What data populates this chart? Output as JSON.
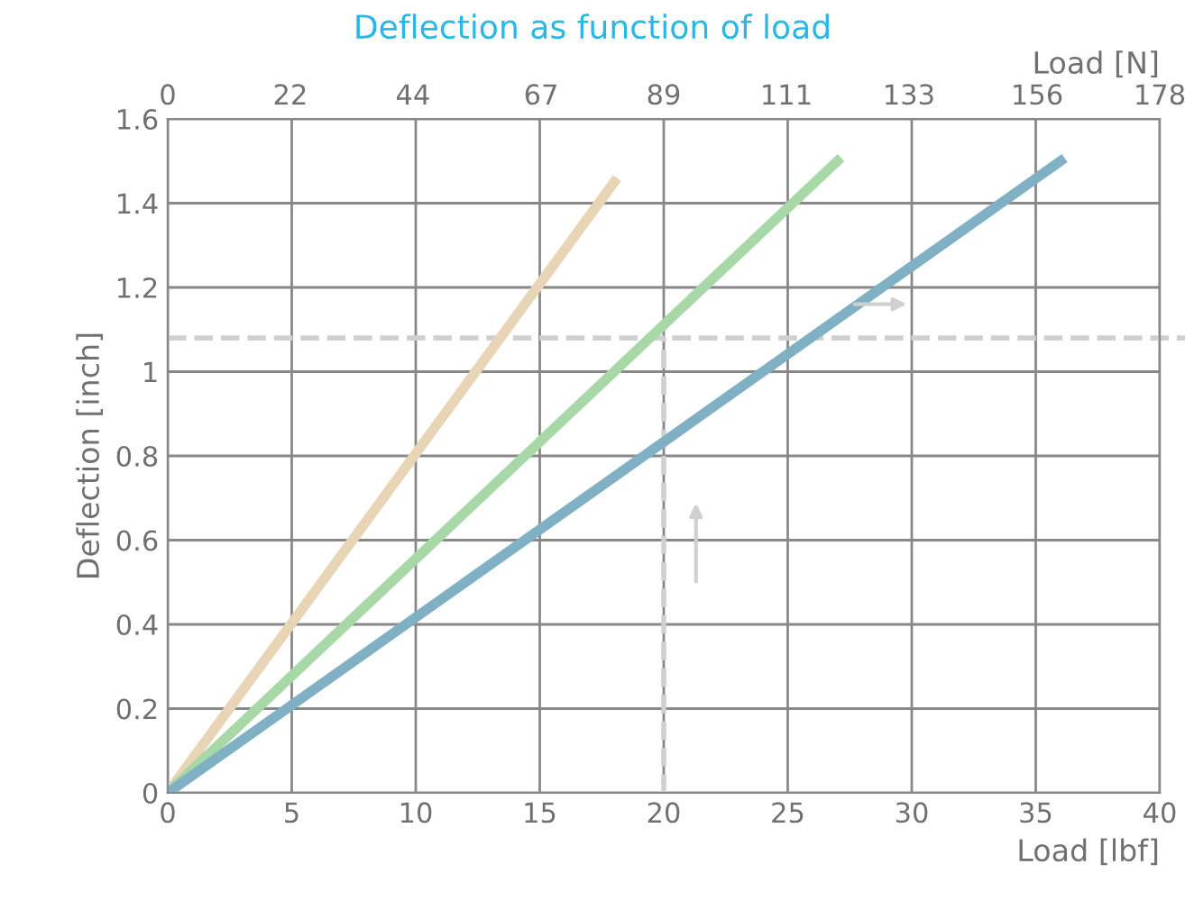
{
  "chart_data": {
    "type": "line",
    "title": "Deflection as function of load",
    "xlabel": "Load [lbf]",
    "ylabel": "Deflection [inch]",
    "x2label": "Load [N]",
    "series": [
      {
        "color": "#e8d5b5",
        "x": [
          0,
          18
        ],
        "values": [
          0,
          1.45
        ]
      },
      {
        "color": "#a8d8a8",
        "x": [
          0,
          27
        ],
        "values": [
          0,
          1.5
        ]
      },
      {
        "color": "#7fb0c4",
        "x": [
          0,
          36
        ],
        "values": [
          0,
          1.5
        ]
      }
    ],
    "xlim": [
      0,
      40
    ],
    "xticks": [
      0,
      5,
      10,
      15,
      20,
      25,
      30,
      35,
      40
    ],
    "ylim": [
      0,
      1.6
    ],
    "yticks": [
      0,
      0.2,
      0.4,
      0.6,
      0.8,
      1,
      1.2,
      1.4,
      1.6
    ],
    "x2lim": [
      0,
      178
    ],
    "x2ticks": [
      0,
      22,
      44,
      67,
      89,
      111,
      133,
      156,
      178
    ],
    "ref_lines": [
      {
        "axis": "y",
        "value": 1.08,
        "color": "#d0d0d0",
        "line_style": "dashed"
      },
      {
        "axis": "x",
        "value": 20,
        "color": "#d0d0d0",
        "line_style": "dashed"
      }
    ],
    "grid": true,
    "legend": false,
    "marker": "none",
    "line_style": "solid"
  }
}
